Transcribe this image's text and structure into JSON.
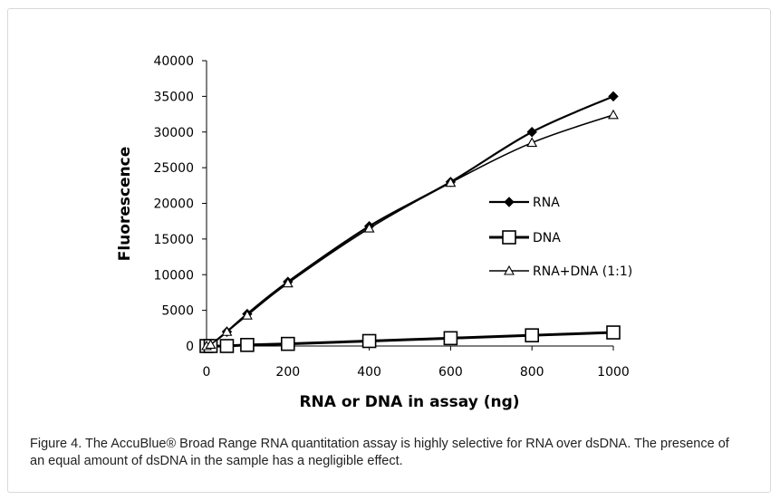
{
  "chart_data": {
    "type": "line",
    "xlabel": "RNA or DNA in assay (ng)",
    "ylabel": "Fluorescence",
    "xlim": [
      0,
      1000
    ],
    "ylim": [
      0,
      40000
    ],
    "x_ticks": [
      "0",
      "200",
      "400",
      "600",
      "800",
      "1000"
    ],
    "y_ticks": [
      "0",
      "5000",
      "10000",
      "15000",
      "20000",
      "25000",
      "30000",
      "35000",
      "40000"
    ],
    "grid": false,
    "legend_position": "right",
    "series": [
      {
        "name": "RNA",
        "marker": "diamond-filled",
        "x": [
          0,
          10,
          50,
          100,
          200,
          400,
          600,
          800,
          1000
        ],
        "y": [
          0,
          200,
          2000,
          4500,
          9000,
          16800,
          23000,
          30000,
          35000
        ]
      },
      {
        "name": "DNA",
        "marker": "square-open",
        "x": [
          0,
          10,
          50,
          100,
          200,
          400,
          600,
          800,
          1000
        ],
        "y": [
          0,
          0,
          0,
          150,
          300,
          700,
          1100,
          1500,
          1900
        ]
      },
      {
        "name": "RNA+DNA (1:1)",
        "marker": "triangle-open",
        "x": [
          0,
          10,
          50,
          100,
          200,
          400,
          600,
          800,
          1000
        ],
        "y": [
          0,
          200,
          2000,
          4300,
          8800,
          16500,
          22900,
          28500,
          32400
        ]
      }
    ]
  },
  "caption": "Figure 4. The AccuBlue® Broad Range RNA quantitation assay is highly selective for RNA over dsDNA. The presence of an equal amount of dsDNA in the sample has a negligible effect.",
  "colors": {
    "line": "#000000",
    "frame_border": "#d9d9d9",
    "caption_text": "#222222"
  }
}
